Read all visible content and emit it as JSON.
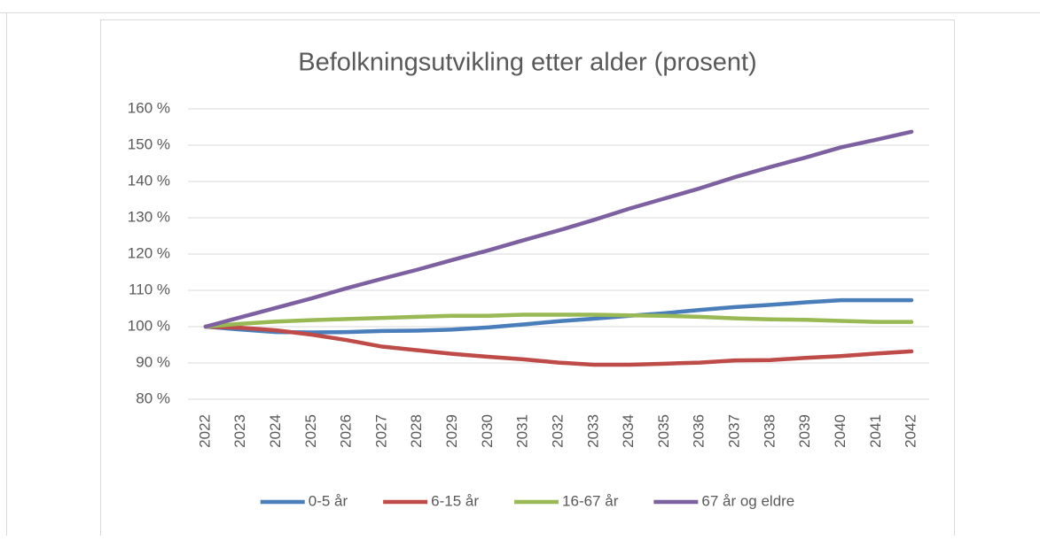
{
  "chart_data": {
    "type": "line",
    "title": "Befolkningsutvikling etter alder (prosent)",
    "categories": [
      "2022",
      "2023",
      "2024",
      "2025",
      "2026",
      "2027",
      "2028",
      "2029",
      "2030",
      "2031",
      "2032",
      "2033",
      "2034",
      "2035",
      "2036",
      "2037",
      "2038",
      "2039",
      "2040",
      "2041",
      "2042"
    ],
    "series": [
      {
        "name": "0-5 år",
        "color": "#4a7ebb",
        "values": [
          100,
          99.2,
          98.5,
          98.4,
          98.5,
          98.8,
          98.9,
          99.2,
          99.8,
          100.6,
          101.5,
          102.2,
          103,
          103.7,
          104.6,
          105.4,
          106,
          106.7,
          107.3,
          107.3,
          107.3
        ]
      },
      {
        "name": "6-15 år",
        "color": "#be4b48",
        "values": [
          100,
          99.7,
          99,
          97.8,
          96.3,
          94.5,
          93.5,
          92.5,
          91.7,
          91,
          90.1,
          89.5,
          89.5,
          89.8,
          90.1,
          90.7,
          90.8,
          91.4,
          91.9,
          92.6,
          93.2
        ]
      },
      {
        "name": "16-67 år",
        "color": "#98b954",
        "values": [
          100,
          100.8,
          101.4,
          101.8,
          102.1,
          102.4,
          102.7,
          103,
          103,
          103.3,
          103.3,
          103.3,
          103.1,
          103,
          102.7,
          102.3,
          102,
          101.9,
          101.6,
          101.3,
          101.3
        ]
      },
      {
        "name": "67 år og eldre",
        "color": "#7d60a0",
        "values": [
          100,
          102.6,
          105.2,
          107.8,
          110.6,
          113.2,
          115.7,
          118.4,
          121,
          123.8,
          126.5,
          129.4,
          132.5,
          135.3,
          138.1,
          141.2,
          144,
          146.6,
          149.4,
          151.5,
          153.7
        ]
      }
    ],
    "ylim": [
      80,
      160
    ],
    "yticks": [
      {
        "value": 80,
        "label": "80 %"
      },
      {
        "value": 90,
        "label": "90 %"
      },
      {
        "value": 100,
        "label": "100 %"
      },
      {
        "value": 110,
        "label": "110 %"
      },
      {
        "value": 120,
        "label": "120 %"
      },
      {
        "value": 130,
        "label": "130 %"
      },
      {
        "value": 140,
        "label": "140 %"
      },
      {
        "value": 150,
        "label": "150 %"
      },
      {
        "value": 160,
        "label": "160 %"
      }
    ],
    "grid": true,
    "legend": "bottom"
  }
}
